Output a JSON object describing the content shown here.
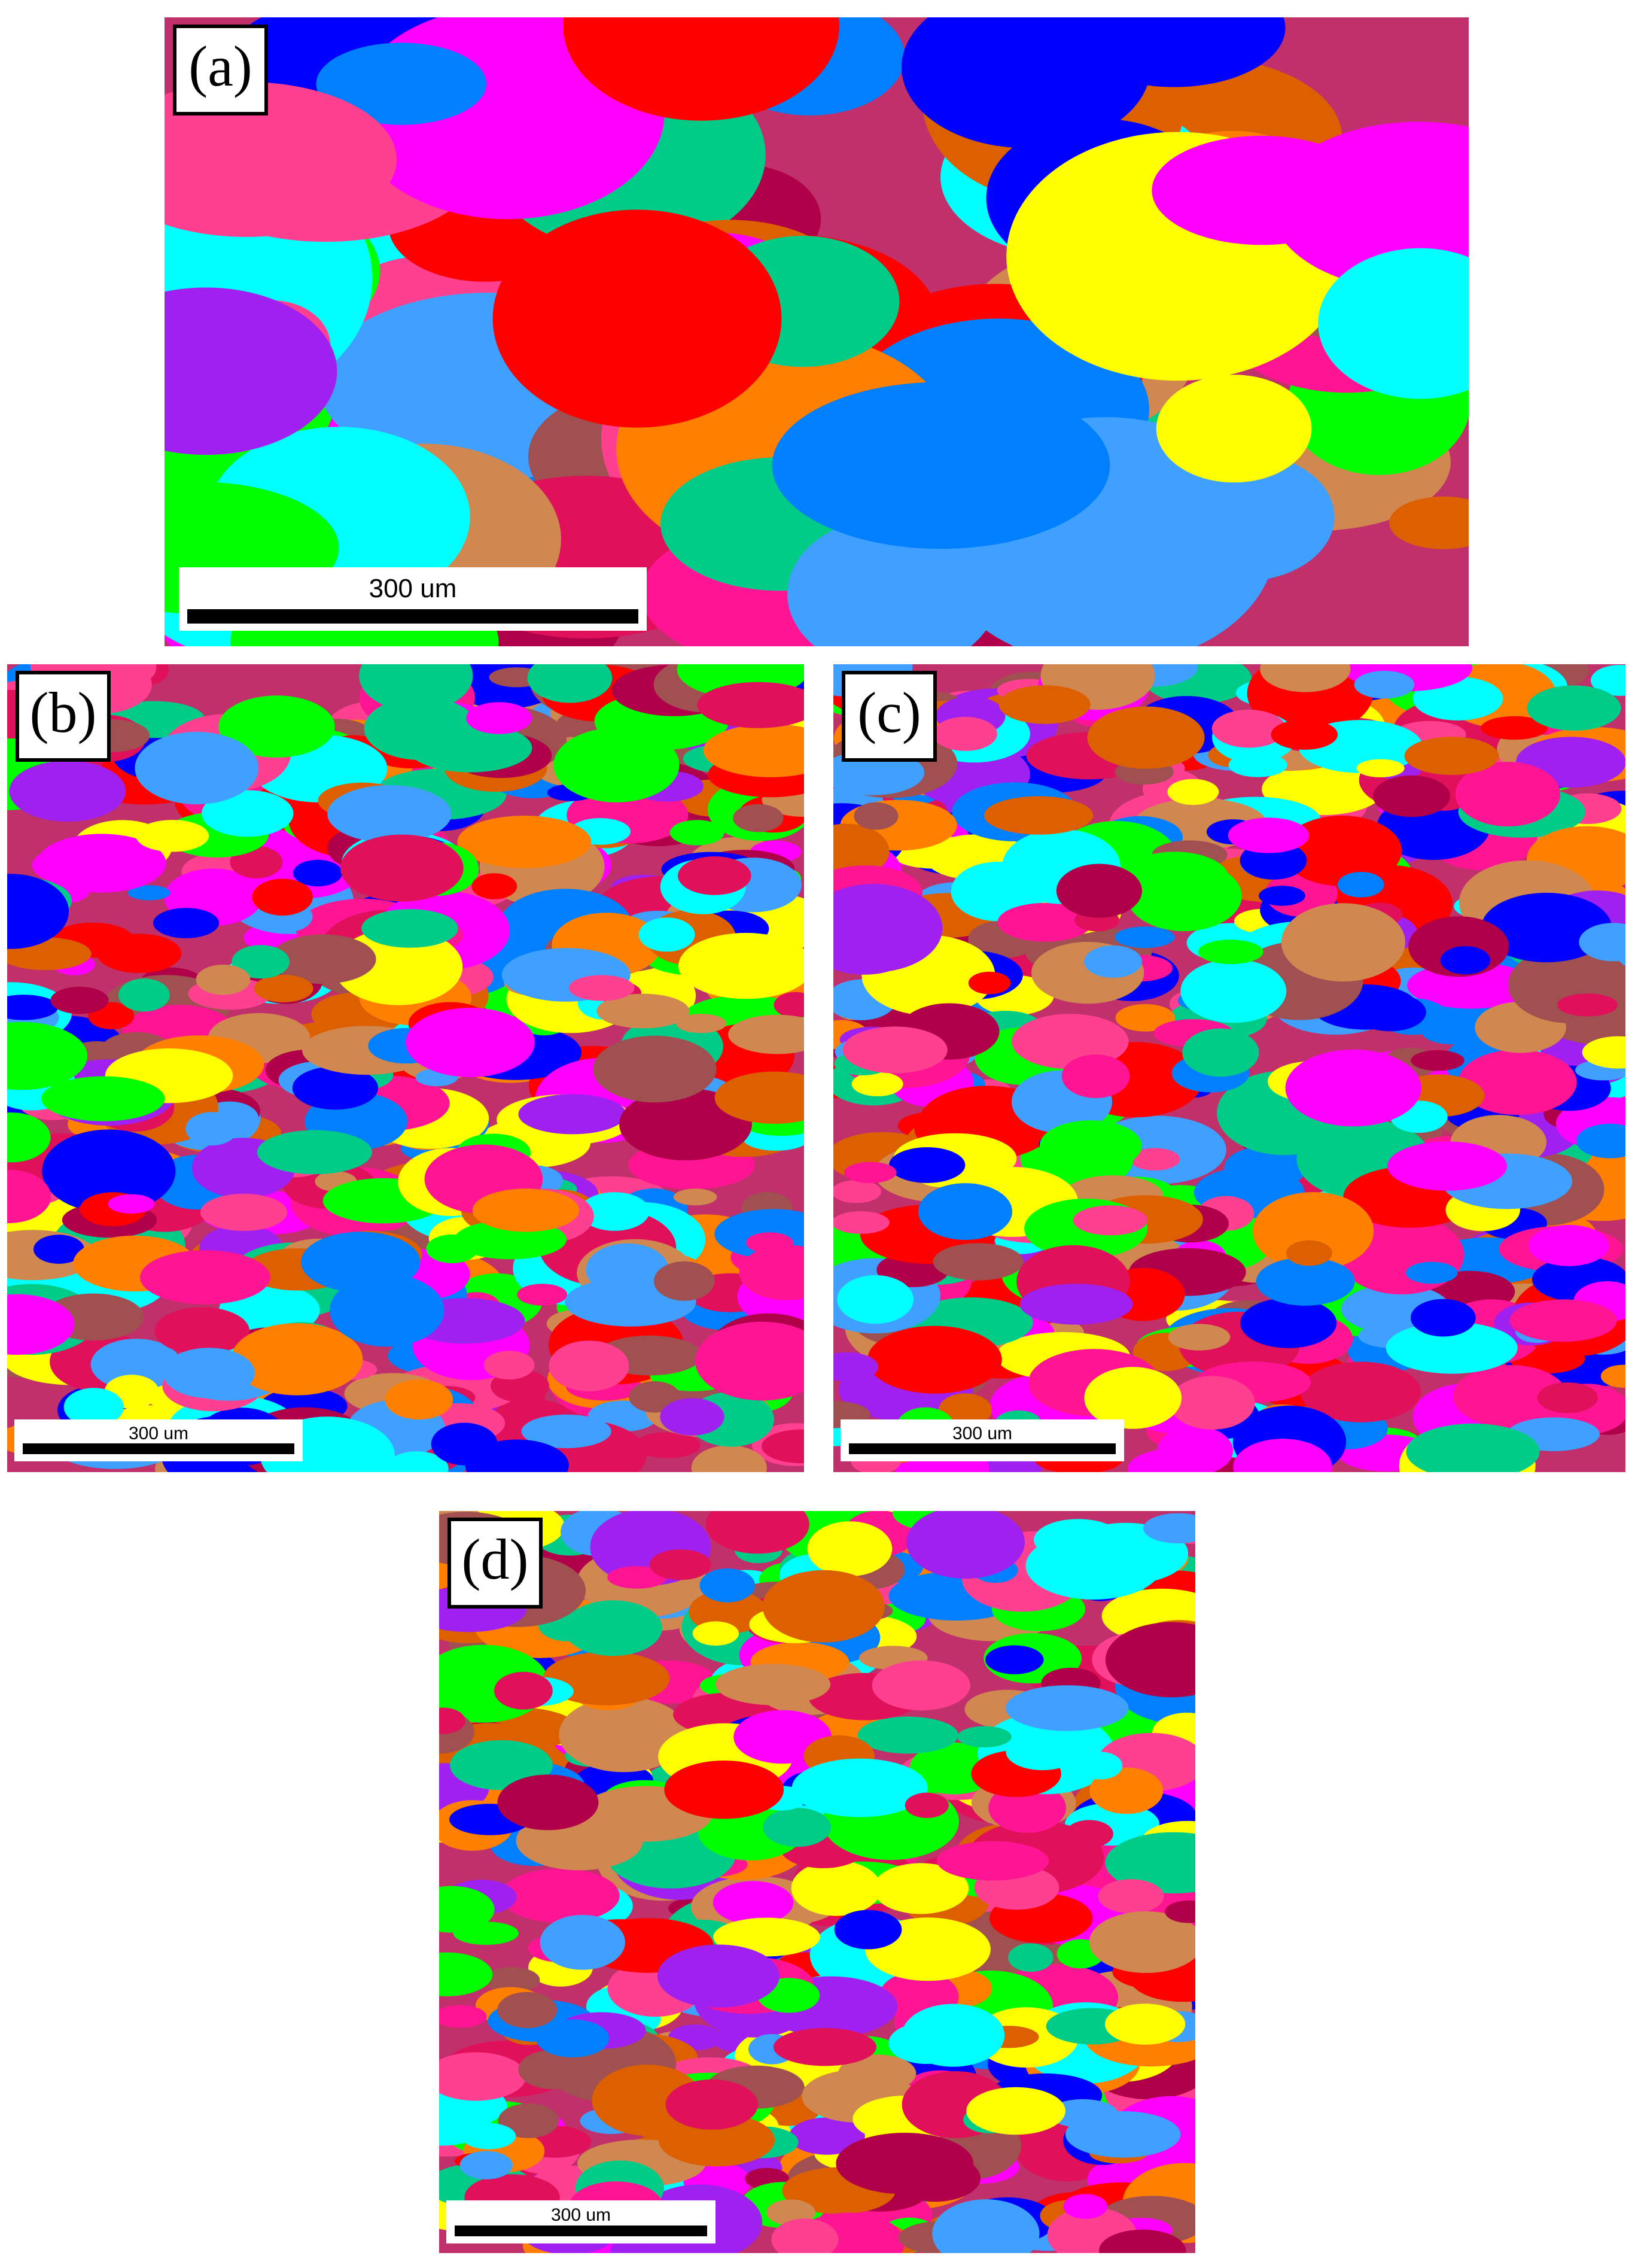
{
  "panels": [
    {
      "label": "(a)",
      "scale_bar": "300 um"
    },
    {
      "label": "(b)",
      "scale_bar": "300 um"
    },
    {
      "label": "(c)",
      "scale_bar": "300 um"
    },
    {
      "label": "(d)",
      "scale_bar": "300 um"
    }
  ]
}
